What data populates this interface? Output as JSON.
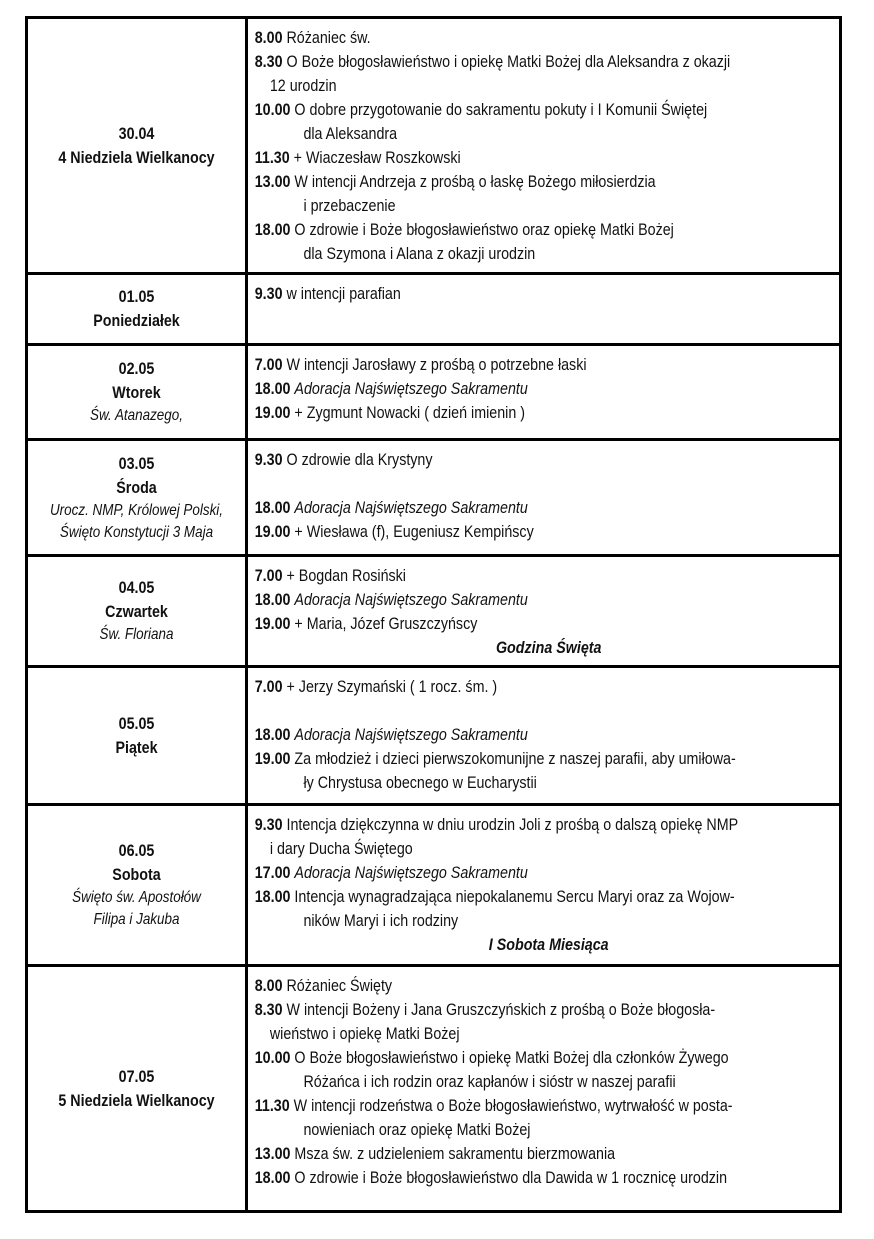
{
  "days": [
    {
      "date": "30.04",
      "day": "4 Niedziela Wielkanocy",
      "feast": "",
      "entries": [
        {
          "time": "8.00",
          "lines": [
            "Różaniec św."
          ]
        },
        {
          "time": "8.30",
          "lines": [
            "O Boże błogosławieństwo i opiekę Matki Bożej dla Aleksandra z okazji",
            "12 urodzin"
          ]
        },
        {
          "time": "10.00",
          "lines": [
            "O dobre przygotowanie do sakramentu pokuty i I Komunii Świętej",
            "dla Aleksandra"
          ]
        },
        {
          "time": "11.30",
          "lines": [
            "+ Wiaczesław Roszkowski"
          ]
        },
        {
          "time": "13.00",
          "lines": [
            "W intencji Andrzeja z prośbą o łaskę Bożego miłosierdzia",
            "i przebaczenie"
          ]
        },
        {
          "time": "18.00",
          "lines": [
            "O zdrowie i Boże błogosławieństwo oraz opiekę Matki Bożej",
            "dla Szymona i Alana z okazji urodzin"
          ]
        }
      ],
      "note": ""
    },
    {
      "date": "01.05",
      "day": "Poniedziałek",
      "feast": "",
      "entries": [
        {
          "time": "9.30",
          "lines": [
            "w intencji parafian"
          ]
        }
      ],
      "note": ""
    },
    {
      "date": "02.05",
      "day": "Wtorek",
      "feast": "Św. Atanazego,",
      "entries": [
        {
          "time": "7.00",
          "lines": [
            "W intencji Jarosławy z prośbą o potrzebne łaski"
          ]
        },
        {
          "time": "18.00",
          "lines": [
            "Adoracja Najświętszego Sakramentu"
          ],
          "italic": true
        },
        {
          "time": "19.00",
          "lines": [
            "+ Zygmunt Nowacki ( dzień imienin )"
          ]
        }
      ],
      "note": ""
    },
    {
      "date": "03.05",
      "day": "Środa",
      "feast": "Urocz. NMP, Królowej Polski, Święto Konstytucji 3 Maja",
      "entries": [
        {
          "time": "9.30",
          "lines": [
            "O zdrowie dla Krystyny"
          ]
        },
        {
          "time": "",
          "lines": [
            ""
          ]
        },
        {
          "time": "18.00",
          "lines": [
            "Adoracja Najświętszego Sakramentu"
          ],
          "italic": true
        },
        {
          "time": "19.00",
          "lines": [
            "+ Wiesława (f), Eugeniusz Kempińscy"
          ]
        }
      ],
      "note": ""
    },
    {
      "date": "04.05",
      "day": "Czwartek",
      "feast": "Św. Floriana",
      "entries": [
        {
          "time": "7.00",
          "lines": [
            "+ Bogdan Rosiński"
          ]
        },
        {
          "time": "18.00",
          "lines": [
            "Adoracja Najświętszego Sakramentu"
          ],
          "italic": true
        },
        {
          "time": "19.00",
          "lines": [
            "+ Maria, Józef Gruszczyńscy"
          ]
        }
      ],
      "note": "Godzina Święta"
    },
    {
      "date": "05.05",
      "day": "Piątek",
      "feast": "",
      "entries": [
        {
          "time": "7.00",
          "lines": [
            "+ Jerzy Szymański ( 1 rocz. śm. )"
          ]
        },
        {
          "time": "",
          "lines": [
            ""
          ]
        },
        {
          "time": "18.00",
          "lines": [
            " Adoracja Najświętszego Sakramentu"
          ],
          "italic": true
        },
        {
          "time": "19.00",
          "lines": [
            "Za młodzież i dzieci pierwszokomunijne z naszej parafii, aby umiłowa-",
            "ły Chrystusa obecnego w Eucharystii"
          ]
        }
      ],
      "note": ""
    },
    {
      "date": "06.05",
      "day": "Sobota",
      "feast": "Święto św. Apostołów Filipa i Jakuba",
      "entries": [
        {
          "time": "9.30",
          "lines": [
            "Intencja dziękczynna w dniu urodzin Joli z prośbą o dalszą opiekę NMP",
            "i dary Ducha Świętego"
          ]
        },
        {
          "time": "17.00",
          "lines": [
            "Adoracja Najświętszego Sakramentu"
          ],
          "italic": true
        },
        {
          "time": "18.00",
          "lines": [
            "Intencja wynagradzająca niepokalanemu Sercu Maryi oraz za Wojow-",
            "ników Maryi i ich rodziny"
          ]
        }
      ],
      "note": "I Sobota Miesiąca"
    },
    {
      "date": "07.05",
      "day": "5 Niedziela Wielkanocy",
      "feast": "",
      "entries": [
        {
          "time": "8.00",
          "lines": [
            "Różaniec Święty"
          ]
        },
        {
          "time": "8.30",
          "lines": [
            "W intencji Bożeny i Jana Gruszczyńskich z prośbą o Boże błogosła-",
            "wieństwo i opiekę Matki Bożej"
          ]
        },
        {
          "time": "10.00",
          "lines": [
            "O Boże błogosławieństwo i opiekę Matki Bożej dla członków Żywego",
            "Różańca i ich rodzin oraz kapłanów i sióstr w naszej parafii"
          ]
        },
        {
          "time": "11.30",
          "lines": [
            "W intencji rodzeństwa o Boże błogosławieństwo,  wytrwałość w posta-",
            "nowieniach oraz opiekę Matki Bożej"
          ]
        },
        {
          "time": "13.00",
          "lines": [
            "Msza św. z udzieleniem sakramentu bierzmowania"
          ]
        },
        {
          "time": "18.00",
          "lines": [
            "O zdrowie i Boże błogosławieństwo dla Dawida w 1 rocznicę urodzin"
          ]
        }
      ],
      "note": ""
    }
  ]
}
